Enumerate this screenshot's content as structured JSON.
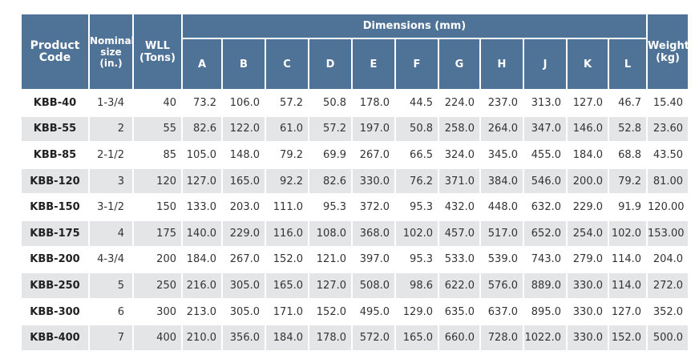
{
  "table": {
    "headers": {
      "product_code": "Product\nCode",
      "nominal_size": "Nominal\nsize\n(in.)",
      "wll": "WLL\n(Tons)",
      "dimensions": "Dimensions (mm)",
      "dims": [
        "A",
        "B",
        "C",
        "D",
        "E",
        "F",
        "G",
        "H",
        "J",
        "K",
        "L"
      ],
      "weight": "Weight\n(kg)"
    },
    "rows": [
      [
        "KBB-40",
        "1-3/4",
        "40",
        "73.2",
        "106.0",
        "57.2",
        "50.8",
        "178.0",
        "44.5",
        "224.0",
        "237.0",
        "313.0",
        "127.0",
        "46.7",
        "15.40"
      ],
      [
        "KBB-55",
        "2",
        "55",
        "82.6",
        "122.0",
        "61.0",
        "57.2",
        "197.0",
        "50.8",
        "258.0",
        "264.0",
        "347.0",
        "146.0",
        "52.8",
        "23.60"
      ],
      [
        "KBB-85",
        "2-1/2",
        "85",
        "105.0",
        "148.0",
        "79.2",
        "69.9",
        "267.0",
        "66.5",
        "324.0",
        "345.0",
        "455.0",
        "184.0",
        "68.8",
        "43.50"
      ],
      [
        "KBB-120",
        "3",
        "120",
        "127.0",
        "165.0",
        "92.2",
        "82.6",
        "330.0",
        "76.2",
        "371.0",
        "384.0",
        "546.0",
        "200.0",
        "79.2",
        "81.00"
      ],
      [
        "KBB-150",
        "3-1/2",
        "150",
        "133.0",
        "203.0",
        "111.0",
        "95.3",
        "372.0",
        "95.3",
        "432.0",
        "448.0",
        "632.0",
        "229.0",
        "91.9",
        "120.00"
      ],
      [
        "KBB-175",
        "4",
        "175",
        "140.0",
        "229.0",
        "116.0",
        "108.0",
        "368.0",
        "102.0",
        "457.0",
        "517.0",
        "652.0",
        "254.0",
        "102.0",
        "153.00"
      ],
      [
        "KBB-200",
        "4-3/4",
        "200",
        "184.0",
        "267.0",
        "152.0",
        "121.0",
        "397.0",
        "95.3",
        "533.0",
        "539.0",
        "743.0",
        "279.0",
        "114.0",
        "204.0"
      ],
      [
        "KBB-250",
        "5",
        "250",
        "216.0",
        "305.0",
        "165.0",
        "127.0",
        "508.0",
        "98.6",
        "622.0",
        "576.0",
        "889.0",
        "330.0",
        "114.0",
        "272.0"
      ],
      [
        "KBB-300",
        "6",
        "300",
        "213.0",
        "305.0",
        "171.0",
        "152.0",
        "495.0",
        "129.0",
        "635.0",
        "637.0",
        "895.0",
        "330.0",
        "127.0",
        "352.0"
      ],
      [
        "KBB-400",
        "7",
        "400",
        "210.0",
        "356.0",
        "184.0",
        "178.0",
        "572.0",
        "165.0",
        "660.0",
        "728.0",
        "1022.0",
        "330.0",
        "152.0",
        "500.0"
      ]
    ]
  }
}
